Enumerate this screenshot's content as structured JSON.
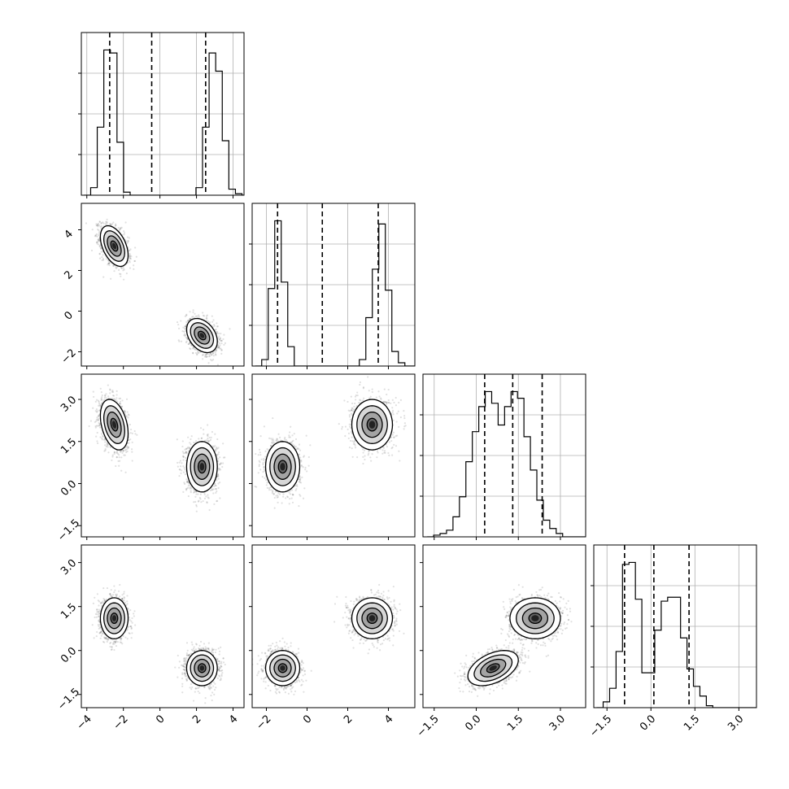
{
  "chart_data": {
    "type": "corner",
    "dimensions": 4,
    "grid": true,
    "colors": {
      "line": "#000000",
      "grid": "#b0b0b0",
      "density": "#000000"
    },
    "ranges": [
      [
        -4.3,
        4.6
      ],
      [
        -2.7,
        5.3
      ],
      [
        -1.9,
        3.9
      ],
      [
        -1.95,
        3.6
      ]
    ],
    "ticks": [
      [
        -4,
        -2,
        0,
        2,
        4
      ],
      [
        -2,
        0,
        2,
        4
      ],
      [
        -1.5,
        0.0,
        1.5,
        3.0
      ],
      [
        -1.5,
        0.0,
        1.5,
        3.0
      ]
    ],
    "tick_labels": [
      [
        "−4",
        "−2",
        "0",
        "2",
        "4"
      ],
      [
        "−2",
        "0",
        "2",
        "4"
      ],
      [
        "−1.5",
        "0.0",
        "1.5",
        "3.0"
      ],
      [
        "−1.5",
        "0.0",
        "1.5",
        "3.0"
      ]
    ],
    "diagonal_hist_grid_fractions": [
      0.25,
      0.5,
      0.75
    ],
    "quantiles": [
      [
        -2.75,
        -0.45,
        2.5
      ],
      [
        -1.45,
        0.75,
        3.5
      ],
      [
        0.3,
        1.3,
        2.35
      ],
      [
        -0.9,
        0.1,
        1.3
      ]
    ],
    "histograms": [
      {
        "edges_start": -4.15,
        "bin_width": 0.36,
        "counts": [
          0,
          5,
          45,
          96,
          94,
          35,
          2,
          0,
          0,
          0,
          0,
          0,
          0,
          0,
          0,
          0,
          0,
          5,
          45,
          94,
          82,
          36,
          4,
          1,
          0
        ]
      },
      {
        "edges_start": -2.55,
        "bin_width": 0.32,
        "counts": [
          0,
          4,
          48,
          90,
          52,
          12,
          0,
          0,
          0,
          0,
          0,
          0,
          0,
          0,
          0,
          0,
          4,
          30,
          60,
          88,
          47,
          9,
          2,
          0,
          0
        ]
      },
      {
        "edges_start": -1.75,
        "bin_width": 0.23,
        "counts": [
          0,
          1,
          2,
          4,
          12,
          24,
          45,
          63,
          78,
          87,
          80,
          67,
          78,
          87,
          83,
          60,
          40,
          22,
          10,
          5,
          2,
          0,
          0,
          0,
          0
        ]
      },
      {
        "edges_start": -1.85,
        "bin_width": 0.22,
        "counts": [
          0,
          3,
          10,
          29,
          74,
          75,
          56,
          18,
          18,
          40,
          55,
          57,
          57,
          36,
          20,
          11,
          6,
          1,
          0,
          0,
          0,
          0,
          0,
          0,
          0
        ]
      }
    ],
    "mixture_components": [
      {
        "mean": [
          -2.5,
          3.2,
          2.1,
          1.1
        ],
        "sd": [
          0.38,
          0.5,
          0.45,
          0.35
        ],
        "corr": {
          "0-1": -0.45,
          "0-2": -0.35,
          "0-3": 0.0,
          "1-2": 0.0,
          "1-3": 0.0,
          "2-3": 0.0
        }
      },
      {
        "mean": [
          2.3,
          -1.2,
          0.6,
          -0.6
        ],
        "sd": [
          0.42,
          0.42,
          0.45,
          0.3
        ],
        "corr": {
          "0-1": -0.35,
          "0-2": 0.0,
          "0-3": 0.0,
          "1-2": 0.0,
          "1-3": 0.0,
          "2-3": 0.45
        }
      }
    ],
    "density_levels_sigma": [
      0.5,
      1.0,
      1.5,
      2.0
    ]
  }
}
